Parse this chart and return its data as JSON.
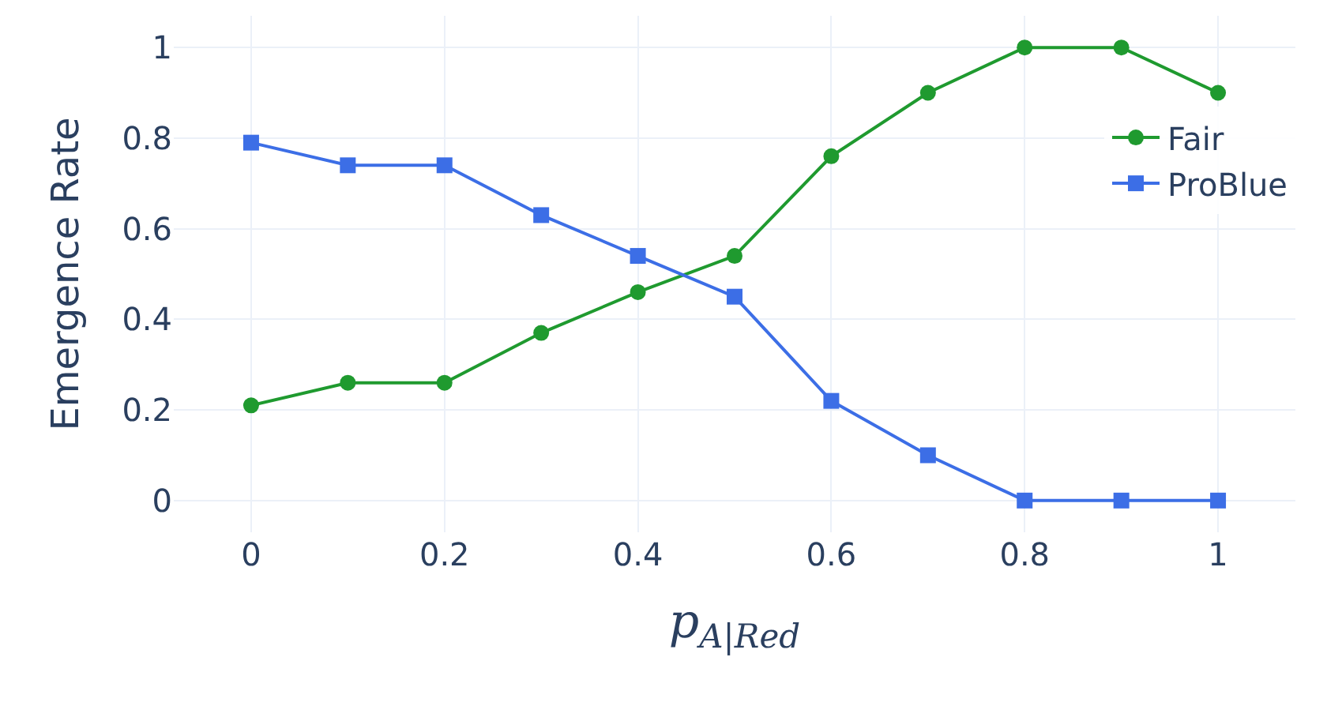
{
  "chart_data": {
    "type": "line",
    "xlabel": "p$_{A|Red}$",
    "ylabel": "Emergence Rate",
    "x": [
      0,
      0.1,
      0.2,
      0.3,
      0.4,
      0.5,
      0.6,
      0.7,
      0.8,
      0.9,
      1
    ],
    "series": [
      {
        "name": "Fair",
        "color": "#1f9a2f",
        "marker": "circle",
        "values": [
          0.21,
          0.26,
          0.26,
          0.37,
          0.46,
          0.54,
          0.76,
          0.9,
          1,
          1,
          0.9
        ]
      },
      {
        "name": "ProBlue",
        "color": "#3c6ee6",
        "marker": "square",
        "values": [
          0.79,
          0.74,
          0.74,
          0.63,
          0.54,
          0.45,
          0.22,
          0.1,
          0,
          0,
          0
        ]
      }
    ],
    "xlim": [
      -0.08,
      1.08
    ],
    "ylim": [
      -0.07,
      1.07
    ],
    "xticks": [
      0,
      0.2,
      0.4,
      0.6,
      0.8,
      1
    ],
    "yticks": [
      0,
      0.2,
      0.4,
      0.6,
      0.8,
      1
    ],
    "grid": true,
    "legend": "right",
    "line_style": "solid"
  }
}
